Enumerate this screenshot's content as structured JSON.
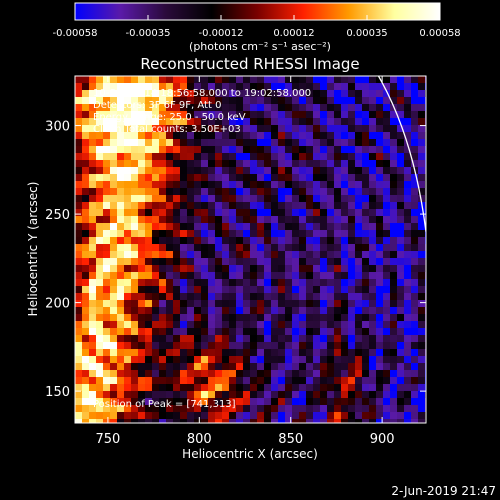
{
  "chart_data": {
    "type": "heatmap",
    "title": "Reconstructed RHESSI Image",
    "xlabel": "Heliocentric X (arcsec)",
    "ylabel": "Heliocentric Y (arcsec)",
    "xlim": [
      732,
      924
    ],
    "ylim": [
      132,
      328
    ],
    "xticks": [
      750,
      800,
      850,
      900
    ],
    "yticks": [
      150,
      200,
      250,
      300
    ],
    "colorbar": {
      "min": -0.00058,
      "max": 0.00058,
      "ticks": [
        "-0.00058",
        "-0.00035",
        "-0.00012",
        "0.00012",
        "0.00035",
        "0.00058"
      ],
      "unit_label": "(photons cm⁻² s⁻¹ asec⁻²)",
      "colormap": [
        "#0000ff",
        "#5a1aa8",
        "#2a0a3a",
        "#000000",
        "#7a0000",
        "#ff2000",
        "#ff9a00",
        "#ffffa0",
        "#ffffff"
      ]
    },
    "annotations": [
      "10-Sep-2014 18:56:58.000 to 19:02:58.000",
      "Detectors: 3F 6F 9F, Att 0",
      "Energy Range: 25.0 - 50.0 keV",
      "Clean    Total counts: 3.50E+03"
    ],
    "peak_label": "Position of Peak = [741,313]",
    "peak": {
      "x": 741,
      "y": 313
    },
    "limb_curve": [
      [
        898,
        328
      ],
      [
        924,
        240
      ]
    ],
    "grid": false
  },
  "footer": {
    "timestamp": "2-Jun-2019 21:47"
  }
}
